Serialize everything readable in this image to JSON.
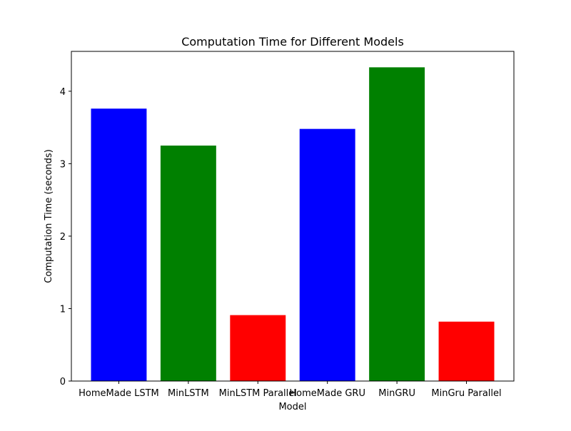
{
  "chart_data": {
    "type": "bar",
    "title": "Computation Time for Different Models",
    "xlabel": "Model",
    "ylabel": "Computation Time (seconds)",
    "categories": [
      "HomeMade LSTM",
      "MinLSTM",
      "MinLSTM Parallel",
      "HomeMade GRU",
      "MinGRU",
      "MinGru Parallel"
    ],
    "values": [
      3.76,
      3.25,
      0.91,
      3.48,
      4.33,
      0.82
    ],
    "colors": [
      "#0000ff",
      "#008000",
      "#ff0000",
      "#0000ff",
      "#008000",
      "#ff0000"
    ],
    "ylim": [
      0,
      4.55
    ],
    "yticks": [
      0,
      1,
      2,
      3,
      4
    ],
    "grid": false,
    "legend": "none"
  }
}
